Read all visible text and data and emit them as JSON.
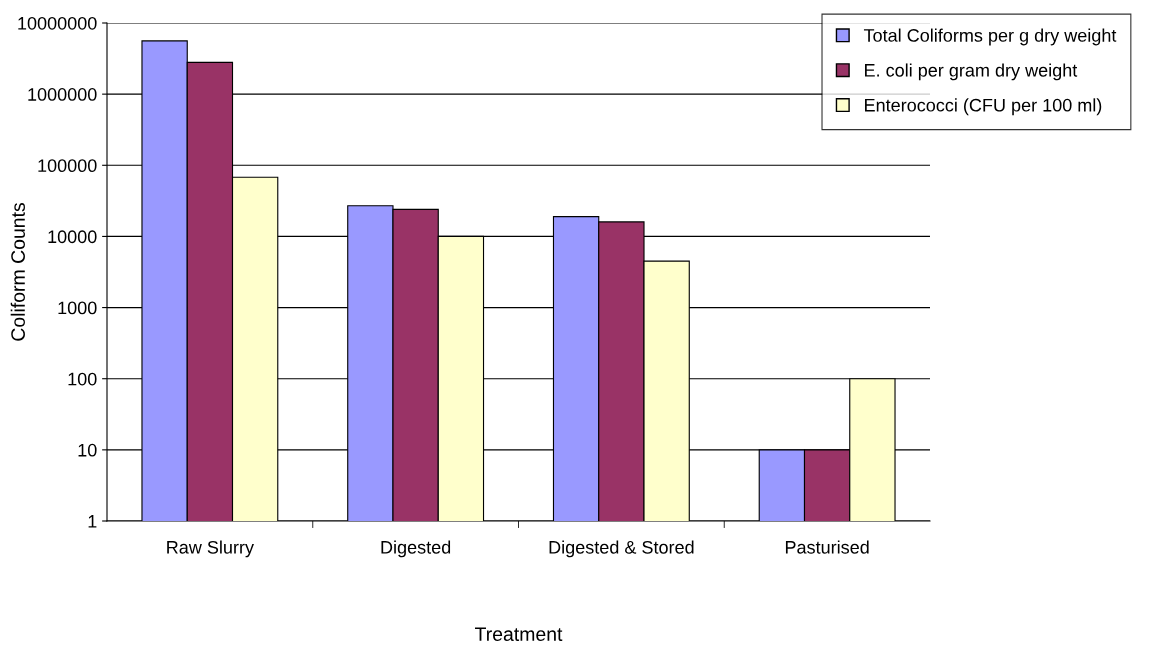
{
  "chart_data": {
    "type": "bar",
    "xlabel": "Treatment",
    "ylabel": "Coliform Counts",
    "categories": [
      "Raw Slurry",
      "Digested",
      "Digested & Stored",
      "Pasturised"
    ],
    "series": [
      {
        "name": "Total Coliforms per g dry weight",
        "color": "#9999ff",
        "values": [
          5600000,
          27000,
          19000,
          10
        ]
      },
      {
        "name": "E. coli per gram dry weight",
        "color": "#993366",
        "values": [
          2800000,
          24000,
          16000,
          10
        ]
      },
      {
        "name": "Enterococci (CFU per 100 ml)",
        "color": "#ffffcc",
        "values": [
          68000,
          10000,
          4500,
          100
        ]
      }
    ],
    "log": "y",
    "ylim": [
      1,
      10000000
    ],
    "yticks": [
      1,
      10,
      100,
      1000,
      10000,
      100000,
      1000000,
      10000000
    ],
    "grid": "y",
    "legend": "top right"
  }
}
